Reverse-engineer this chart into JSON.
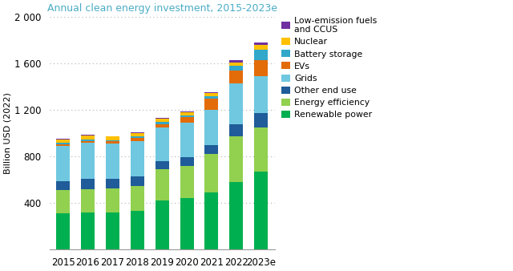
{
  "title": "Annual clean energy investment, 2015-2023e",
  "ylabel": "Billion USD (2022)",
  "years": [
    "2015",
    "2016",
    "2017",
    "2018",
    "2019",
    "2020",
    "2021",
    "2022",
    "2023e"
  ],
  "categories": [
    "Renewable power",
    "Energy efficiency",
    "Other end use",
    "Grids",
    "EVs",
    "Battery storage",
    "Nuclear",
    "Low-emission fuels\nand CCUS"
  ],
  "colors": [
    "#00b050",
    "#92d050",
    "#1f5c99",
    "#70c8e0",
    "#e36c09",
    "#31a8c9",
    "#ffc000",
    "#7030a0"
  ],
  "data": {
    "Renewable power": [
      310,
      315,
      315,
      330,
      420,
      440,
      490,
      580,
      670
    ],
    "Energy efficiency": [
      200,
      205,
      210,
      215,
      270,
      280,
      330,
      390,
      380
    ],
    "Other end use": [
      80,
      85,
      80,
      85,
      70,
      75,
      80,
      110,
      120
    ],
    "Grids": [
      300,
      310,
      305,
      305,
      290,
      295,
      300,
      350,
      320
    ],
    "EVs": [
      15,
      20,
      20,
      25,
      30,
      50,
      100,
      110,
      140
    ],
    "Battery storage": [
      10,
      10,
      10,
      10,
      15,
      15,
      20,
      40,
      90
    ],
    "Nuclear": [
      30,
      35,
      30,
      30,
      30,
      25,
      25,
      30,
      40
    ],
    "Low-emission fuels\nand CCUS": [
      5,
      5,
      5,
      5,
      5,
      5,
      10,
      15,
      20
    ]
  },
  "ylim": [
    0,
    2000
  ],
  "yticks": [
    0,
    400,
    800,
    1200,
    1600,
    2000
  ],
  "ytick_labels": [
    "",
    "400",
    "800",
    "1 200",
    "1 600",
    "2 000"
  ],
  "title_color": "#4bacc6",
  "background_color": "#ffffff",
  "grid_color": "#b0b0b0",
  "bar_width": 0.55,
  "legend_fontsize": 7.8,
  "tick_fontsize": 8.5,
  "ylabel_fontsize": 8,
  "title_fontsize": 9
}
